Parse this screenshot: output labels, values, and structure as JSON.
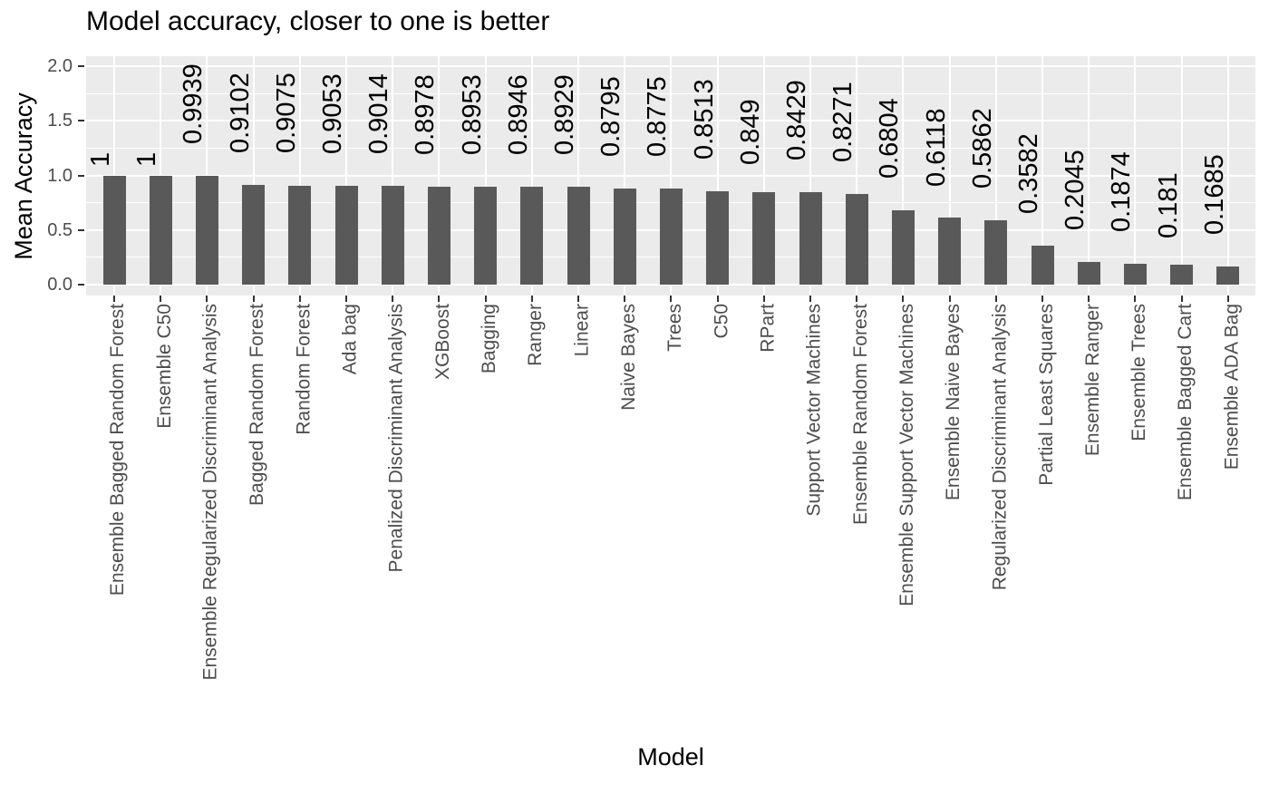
{
  "chart_data": {
    "type": "bar",
    "title": "Model accuracy, closer to one is better",
    "xlabel": "Model",
    "ylabel": "Mean Accuracy",
    "categories": [
      "Ensemble Bagged Random Forest",
      "Ensemble C50",
      "Ensemble Regularized Discriminant Analysis",
      "Bagged Random Forest",
      "Random Forest",
      "Ada bag",
      "Penalized Discriminant Analysis",
      "XGBoost",
      "Bagging",
      "Ranger",
      "Linear",
      "Naive Bayes",
      "Trees",
      "C50",
      "RPart",
      "Support Vector Machines",
      "Ensemble Random Forest",
      "Ensemble Support Vector Machines",
      "Ensemble Naive Bayes",
      "Regularized Discriminant Analysis",
      "Partial Least Squares",
      "Ensemble Ranger",
      "Ensemble Trees",
      "Ensemble Bagged Cart",
      "Ensemble ADA Bag"
    ],
    "values": [
      1,
      1,
      0.9939,
      0.9102,
      0.9075,
      0.9053,
      0.9014,
      0.8978,
      0.8953,
      0.8946,
      0.8929,
      0.8795,
      0.8775,
      0.8513,
      0.849,
      0.8429,
      0.8271,
      0.6804,
      0.6118,
      0.5862,
      0.3582,
      0.2045,
      0.1874,
      0.181,
      0.1685
    ],
    "value_labels": [
      "1",
      "1",
      "0.9939",
      "0.9102",
      "0.9075",
      "0.9053",
      "0.9014",
      "0.8978",
      "0.8953",
      "0.8946",
      "0.8929",
      "0.8795",
      "0.8775",
      "0.8513",
      "0.849",
      "0.8429",
      "0.8271",
      "0.6804",
      "0.6118",
      "0.5862",
      "0.3582",
      "0.2045",
      "0.1874",
      "0.181",
      "0.1685"
    ],
    "yticks": {
      "values": [
        0,
        0.5,
        1,
        1.5,
        2
      ],
      "labels": [
        "0.0",
        "0.5",
        "1.0",
        "1.5",
        "2.0"
      ]
    },
    "y_minor_ticks": [
      0.25,
      0.75,
      1.25,
      1.75
    ],
    "ylim": [
      -0.1,
      2.09
    ],
    "grid": "horizontal major+minor, vertical major at category centers",
    "legend": "none",
    "value_label_rotation": 90,
    "x_tick_label_rotation": 90,
    "colors": {
      "bar": "#595959",
      "panel_background": "#EBEBEB",
      "gridline": "#FFFFFF",
      "axis_text": "#4D4D4D",
      "tick_mark": "#333333",
      "value_label_text": "#000000",
      "title_text": "#000000",
      "page_background": "#FFFFFF"
    }
  }
}
